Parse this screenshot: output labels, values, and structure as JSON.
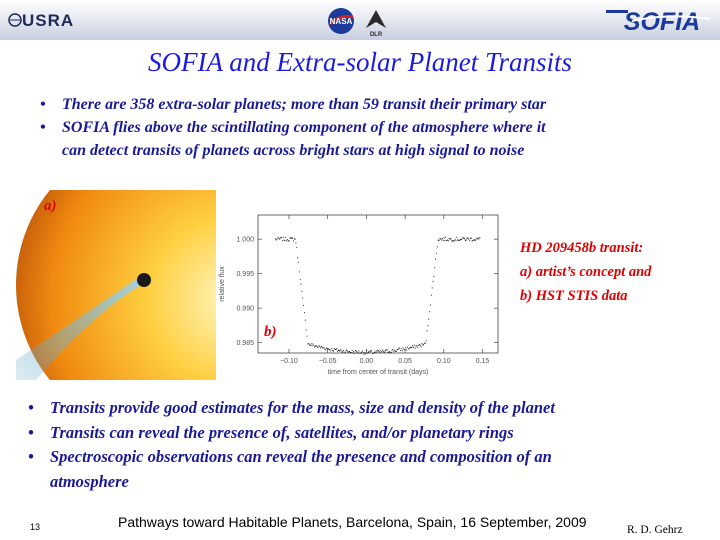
{
  "header": {
    "usra_logo": "USRA",
    "sofia_logo": "SOFIA",
    "nasa_logo": "NASA",
    "dlr_logo": "DLR"
  },
  "title": "SOFIA and Extra-solar Planet Transits",
  "top_bullets": [
    {
      "lines": [
        "There are 358 extra-solar planets; more than 59 transit their primary star"
      ]
    },
    {
      "lines": [
        "SOFIA flies above the scintillating component of the atmosphere  where it",
        "can detect transits of planets across bright stars at high signal to noise"
      ]
    }
  ],
  "figure": {
    "label_a": "a)",
    "label_b": "b)",
    "caption": [
      "HD 209458b transit:",
      "a) artist’s concept and",
      "b) HST STIS data"
    ]
  },
  "chart_data": {
    "type": "scatter",
    "title": "",
    "xlabel": "time from center of transit (days)",
    "ylabel": "relative flux",
    "xlim": [
      -0.14,
      0.17
    ],
    "ylim": [
      0.9835,
      1.0035
    ],
    "x_ticks": [
      -0.1,
      -0.05,
      0.0,
      0.05,
      0.1,
      0.15
    ],
    "x_tick_labels": [
      "−0.10",
      "−0.05",
      "0.00",
      "0.05",
      "0.10",
      "0.15"
    ],
    "y_ticks": [
      1.0,
      0.995,
      0.99,
      0.985
    ],
    "y_tick_labels": [
      "1.000",
      "0.995",
      "0.990",
      "0.985"
    ],
    "model": {
      "baseline": 1.0,
      "depth": 0.0164,
      "contact_1": -0.092,
      "contact_2": -0.076,
      "contact_3": 0.076,
      "contact_4": 0.092
    },
    "color": "#222222"
  },
  "bottom_bullets": [
    {
      "lines": [
        "Transits provide  good estimates for the mass, size and density of the planet"
      ]
    },
    {
      "lines": [
        "Transits can reveal the presence of, satellites, and/or planetary rings"
      ]
    },
    {
      "lines": [
        "Spectroscopic observations  can reveal the presence and composition of an",
        "atmosphere"
      ]
    }
  ],
  "footer": {
    "page_number": "13",
    "text": "Pathways toward Habitable Planets, Barcelona, Spain, 16 September, 2009",
    "author": "R.  D. Gehrz"
  },
  "colors": {
    "title": "#1a1ae0",
    "bullet_text": "#1a1a96",
    "caption": "#e00000"
  }
}
